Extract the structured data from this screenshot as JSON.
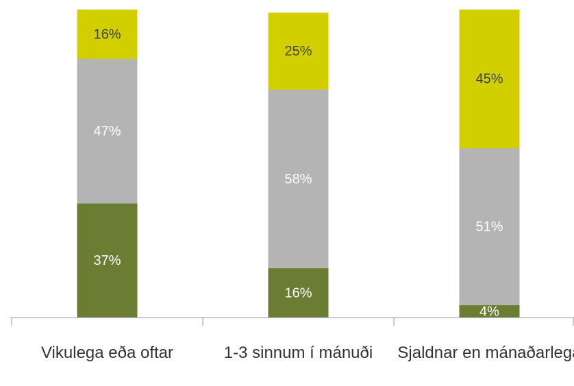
{
  "chart_data": {
    "type": "stacked_bar",
    "categories": [
      "Vikulega eða oftar",
      "1-3 sinnum í mánuði",
      "Sjaldnar en mánaðarlega"
    ],
    "series": [
      {
        "color": "#6b7d32",
        "label_color": "#ffffff",
        "values": [
          37,
          16,
          4
        ],
        "value_labels": [
          "37%",
          "16%",
          "4%"
        ]
      },
      {
        "color": "#b4b4b4",
        "label_color": "#ffffff",
        "values": [
          47,
          58,
          51
        ],
        "value_labels": [
          "47%",
          "58%",
          "51%"
        ]
      },
      {
        "color": "#d2cf00",
        "label_color": "#404040",
        "values": [
          16,
          25,
          45
        ],
        "value_labels": [
          "16%",
          "25%",
          "45%"
        ]
      }
    ],
    "ylim": [
      0,
      100
    ]
  }
}
